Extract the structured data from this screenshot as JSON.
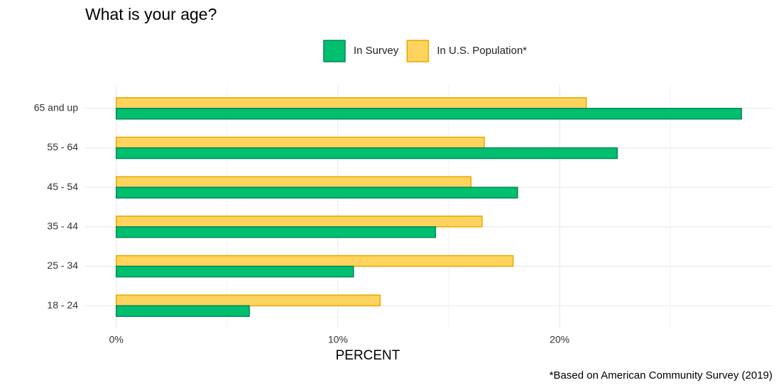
{
  "chart_data": {
    "type": "grouped-hbar",
    "title": "What is your age?",
    "x_label": "PERCENT",
    "footnote": "*Based on American Community Survey (2019)",
    "categories": [
      "65 and up",
      "55 - 64",
      "45 - 54",
      "35 - 44",
      "25 - 34",
      "18 - 24"
    ],
    "series": [
      {
        "name": "In Survey",
        "color": "#00bf6f",
        "stroke": "#00875a",
        "values": [
          28.2,
          22.6,
          18.1,
          14.4,
          10.7,
          6.0
        ]
      },
      {
        "name": "In U.S. Population*",
        "color": "#ffd45e",
        "stroke": "#e6a800",
        "values": [
          21.2,
          16.6,
          16.0,
          16.5,
          17.9,
          11.9
        ]
      }
    ],
    "xlim": [
      -1.4,
      29.6
    ],
    "xticks": [
      {
        "value": 0,
        "label": "0%"
      },
      {
        "value": 10,
        "label": "10%"
      },
      {
        "value": 20,
        "label": "20%"
      }
    ],
    "minor_xticks": [
      5,
      15,
      25
    ],
    "grid": true,
    "legend": "top"
  }
}
